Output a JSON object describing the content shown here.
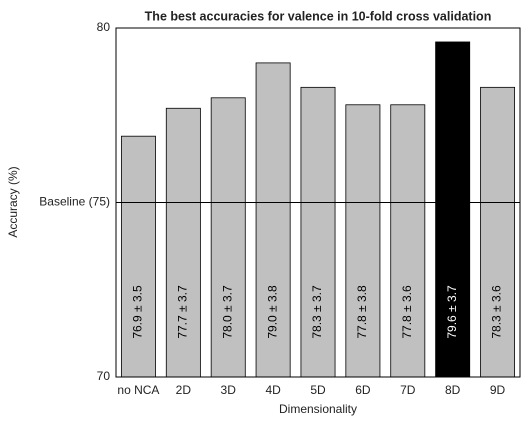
{
  "chart_data": {
    "type": "bar",
    "title": "The best accuracies for valence in 10-fold cross validation",
    "x_label": "Dimensionality",
    "y_label": "Accuracy (%)",
    "categories": [
      "no NCA",
      "2D",
      "3D",
      "4D",
      "5D",
      "6D",
      "7D",
      "8D",
      "9D"
    ],
    "values": [
      76.9,
      77.7,
      78.0,
      79.0,
      78.3,
      77.8,
      77.8,
      79.6,
      78.3
    ],
    "value_labels": [
      "76.9 ± 3.5",
      "77.7 ± 3.7",
      "78.0 ± 3.7",
      "79.0 ± 3.8",
      "78.3 ± 3.7",
      "77.8 ± 3.8",
      "77.8 ± 3.6",
      "79.6 ± 3.7",
      "78.3 ± 3.6"
    ],
    "colors": [
      "#c0c0c0",
      "#c0c0c0",
      "#c0c0c0",
      "#c0c0c0",
      "#c0c0c0",
      "#c0c0c0",
      "#c0c0c0",
      "#000000",
      "#c0c0c0"
    ],
    "ylim": [
      70,
      80
    ],
    "yticks": [
      70,
      {
        "value": 75,
        "label": "Baseline (75)"
      },
      80
    ],
    "grid": true
  }
}
